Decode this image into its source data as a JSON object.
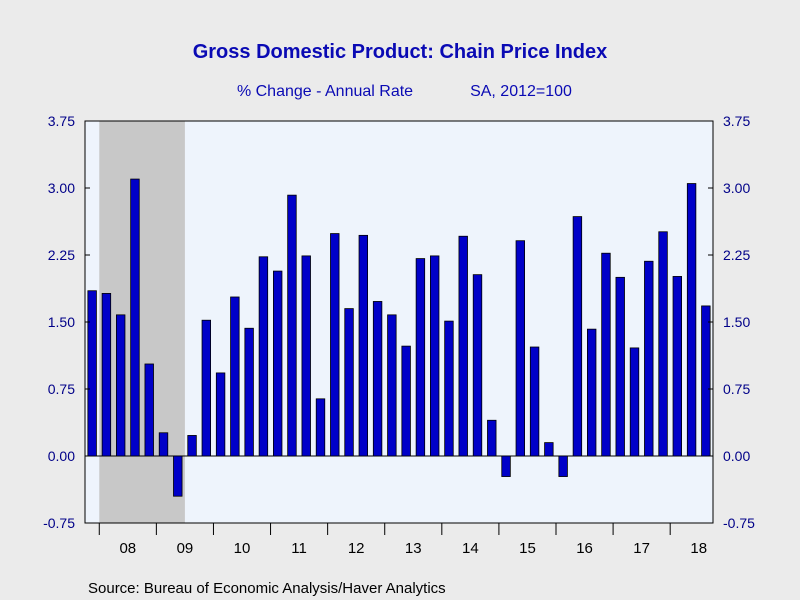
{
  "chart_data": {
    "type": "bar",
    "title": "Gross Domestic Product: Chain Price Index",
    "subtitle_left": "% Change - Annual Rate",
    "subtitle_right": "SA, 2012=100",
    "source": "Source:  Bureau of Economic Analysis/Haver Analytics",
    "ylim": [
      -0.75,
      3.75
    ],
    "yticks": [
      "3.75",
      "3.00",
      "2.25",
      "1.50",
      "0.75",
      "0.00",
      "-0.75"
    ],
    "ytick_values": [
      3.75,
      3.0,
      2.25,
      1.5,
      0.75,
      0.0,
      -0.75
    ],
    "year_labels": [
      "08",
      "09",
      "10",
      "11",
      "12",
      "13",
      "14",
      "15",
      "16",
      "17",
      "18"
    ],
    "recession_label": "recession shading 2008Q1-2009Q2",
    "recession_quarters": [
      1,
      6
    ],
    "colors": {
      "bar_fill": "#0000c8",
      "bar_stroke": "#000000",
      "plot_bg": "#eef4fc",
      "recession": "#c8c8c8",
      "axis_text": "#000088",
      "title": "#0a0ab4"
    },
    "quarters": [
      "2007Q4",
      "2008Q1",
      "2008Q2",
      "2008Q3",
      "2008Q4",
      "2009Q1",
      "2009Q2",
      "2009Q3",
      "2009Q4",
      "2010Q1",
      "2010Q2",
      "2010Q3",
      "2010Q4",
      "2011Q1",
      "2011Q2",
      "2011Q3",
      "2011Q4",
      "2012Q1",
      "2012Q2",
      "2012Q3",
      "2012Q4",
      "2013Q1",
      "2013Q2",
      "2013Q3",
      "2013Q4",
      "2014Q1",
      "2014Q2",
      "2014Q3",
      "2014Q4",
      "2015Q1",
      "2015Q2",
      "2015Q3",
      "2015Q4",
      "2016Q1",
      "2016Q2",
      "2016Q3",
      "2016Q4",
      "2017Q1",
      "2017Q2",
      "2017Q3",
      "2017Q4",
      "2018Q1",
      "2018Q2",
      "2018Q3"
    ],
    "values": [
      1.85,
      1.82,
      1.58,
      3.1,
      1.03,
      0.26,
      -0.45,
      0.23,
      1.52,
      0.93,
      1.78,
      1.43,
      2.23,
      2.07,
      2.92,
      2.24,
      0.64,
      2.49,
      1.65,
      2.47,
      1.73,
      1.58,
      1.23,
      2.21,
      2.24,
      1.51,
      2.46,
      2.03,
      0.4,
      -0.23,
      2.41,
      1.22,
      0.15,
      -0.23,
      2.68,
      1.42,
      2.27,
      2.0,
      1.21,
      2.18,
      2.51,
      2.01,
      3.05,
      1.68
    ]
  }
}
